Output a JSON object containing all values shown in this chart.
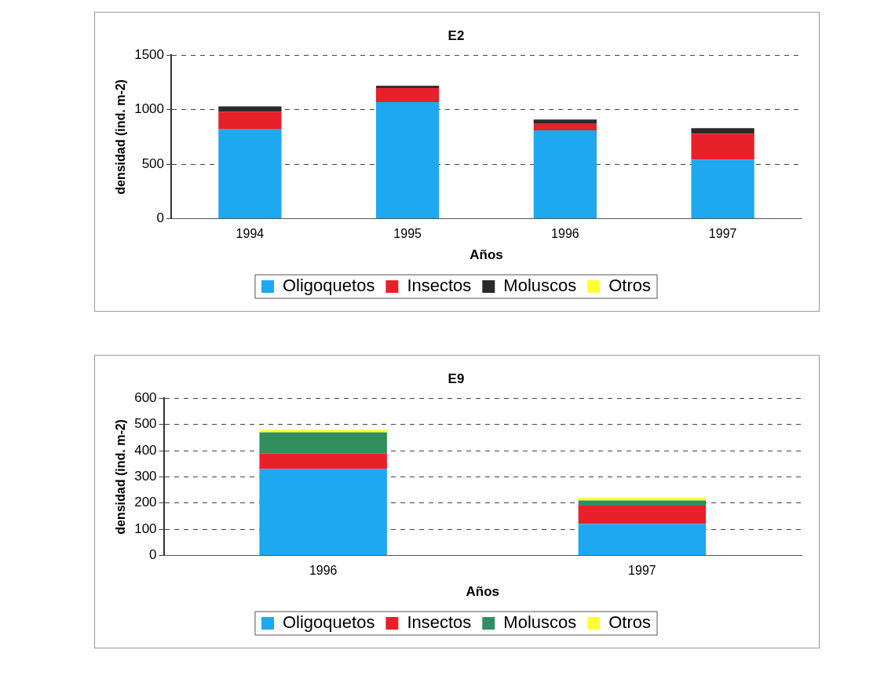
{
  "chart_data": [
    {
      "type": "bar",
      "title": "E2",
      "xlabel": "Años",
      "ylabel": "densidad (ind. m-2)",
      "categories": [
        "1994",
        "1995",
        "1996",
        "1997"
      ],
      "stacked": true,
      "ylim": [
        0,
        1500
      ],
      "yticks": [
        0,
        500,
        1000,
        1500
      ],
      "grid": "y",
      "legend": "bottom",
      "series": [
        {
          "name": "Oligoquetos",
          "color": "#1ea8f0",
          "values": [
            820,
            1070,
            810,
            540
          ]
        },
        {
          "name": "Insectos",
          "color": "#e8202a",
          "values": [
            160,
            130,
            60,
            240
          ]
        },
        {
          "name": "Moluscos",
          "color": "#2a2a2a",
          "values": [
            50,
            20,
            40,
            50
          ]
        },
        {
          "name": "Otros",
          "color": "#ffff33",
          "values": [
            0,
            0,
            0,
            0
          ]
        }
      ]
    },
    {
      "type": "bar",
      "title": "E9",
      "xlabel": "Años",
      "ylabel": "densidad (ind. m-2)",
      "categories": [
        "1996",
        "1997"
      ],
      "stacked": true,
      "ylim": [
        0,
        600
      ],
      "yticks": [
        0,
        100,
        200,
        300,
        400,
        500,
        600
      ],
      "grid": "y",
      "legend": "bottom",
      "series": [
        {
          "name": "Oligoquetos",
          "color": "#1ea8f0",
          "values": [
            330,
            120
          ]
        },
        {
          "name": "Insectos",
          "color": "#e8202a",
          "values": [
            60,
            70
          ]
        },
        {
          "name": "Moluscos",
          "color": "#2f8f5f",
          "values": [
            80,
            20
          ]
        },
        {
          "name": "Otros",
          "color": "#ffff33",
          "values": [
            10,
            10
          ]
        }
      ]
    }
  ]
}
